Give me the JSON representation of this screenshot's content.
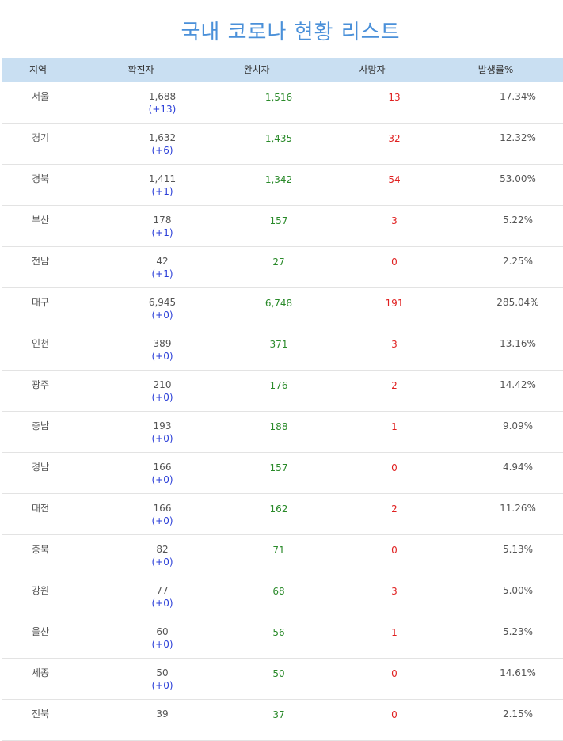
{
  "title": "국내 코로나 현황 리스트",
  "columns": [
    "지역",
    "확진자",
    "완치자",
    "사망자",
    "발생률%"
  ],
  "rows": [
    {
      "region": "서울",
      "confirmed": "1,688",
      "delta": "(+13)",
      "recovered": "1,516",
      "deaths": "13",
      "rate": "17.34%"
    },
    {
      "region": "경기",
      "confirmed": "1,632",
      "delta": "(+6)",
      "recovered": "1,435",
      "deaths": "32",
      "rate": "12.32%"
    },
    {
      "region": "경북",
      "confirmed": "1,411",
      "delta": "(+1)",
      "recovered": "1,342",
      "deaths": "54",
      "rate": "53.00%"
    },
    {
      "region": "부산",
      "confirmed": "178",
      "delta": "(+1)",
      "recovered": "157",
      "deaths": "3",
      "rate": "5.22%"
    },
    {
      "region": "전남",
      "confirmed": "42",
      "delta": "(+1)",
      "recovered": "27",
      "deaths": "0",
      "rate": "2.25%"
    },
    {
      "region": "대구",
      "confirmed": "6,945",
      "delta": "(+0)",
      "recovered": "6,748",
      "deaths": "191",
      "rate": "285.04%"
    },
    {
      "region": "인천",
      "confirmed": "389",
      "delta": "(+0)",
      "recovered": "371",
      "deaths": "3",
      "rate": "13.16%"
    },
    {
      "region": "광주",
      "confirmed": "210",
      "delta": "(+0)",
      "recovered": "176",
      "deaths": "2",
      "rate": "14.42%"
    },
    {
      "region": "충남",
      "confirmed": "193",
      "delta": "(+0)",
      "recovered": "188",
      "deaths": "1",
      "rate": "9.09%"
    },
    {
      "region": "경남",
      "confirmed": "166",
      "delta": "(+0)",
      "recovered": "157",
      "deaths": "0",
      "rate": "4.94%"
    },
    {
      "region": "대전",
      "confirmed": "166",
      "delta": "(+0)",
      "recovered": "162",
      "deaths": "2",
      "rate": "11.26%"
    },
    {
      "region": "충북",
      "confirmed": "82",
      "delta": "(+0)",
      "recovered": "71",
      "deaths": "0",
      "rate": "5.13%"
    },
    {
      "region": "강원",
      "confirmed": "77",
      "delta": "(+0)",
      "recovered": "68",
      "deaths": "3",
      "rate": "5.00%"
    },
    {
      "region": "울산",
      "confirmed": "60",
      "delta": "(+0)",
      "recovered": "56",
      "deaths": "1",
      "rate": "5.23%"
    },
    {
      "region": "세종",
      "confirmed": "50",
      "delta": "(+0)",
      "recovered": "50",
      "deaths": "0",
      "rate": "14.61%"
    },
    {
      "region": "전북",
      "confirmed": "39",
      "delta": "",
      "recovered": "37",
      "deaths": "0",
      "rate": "2.15%"
    }
  ]
}
